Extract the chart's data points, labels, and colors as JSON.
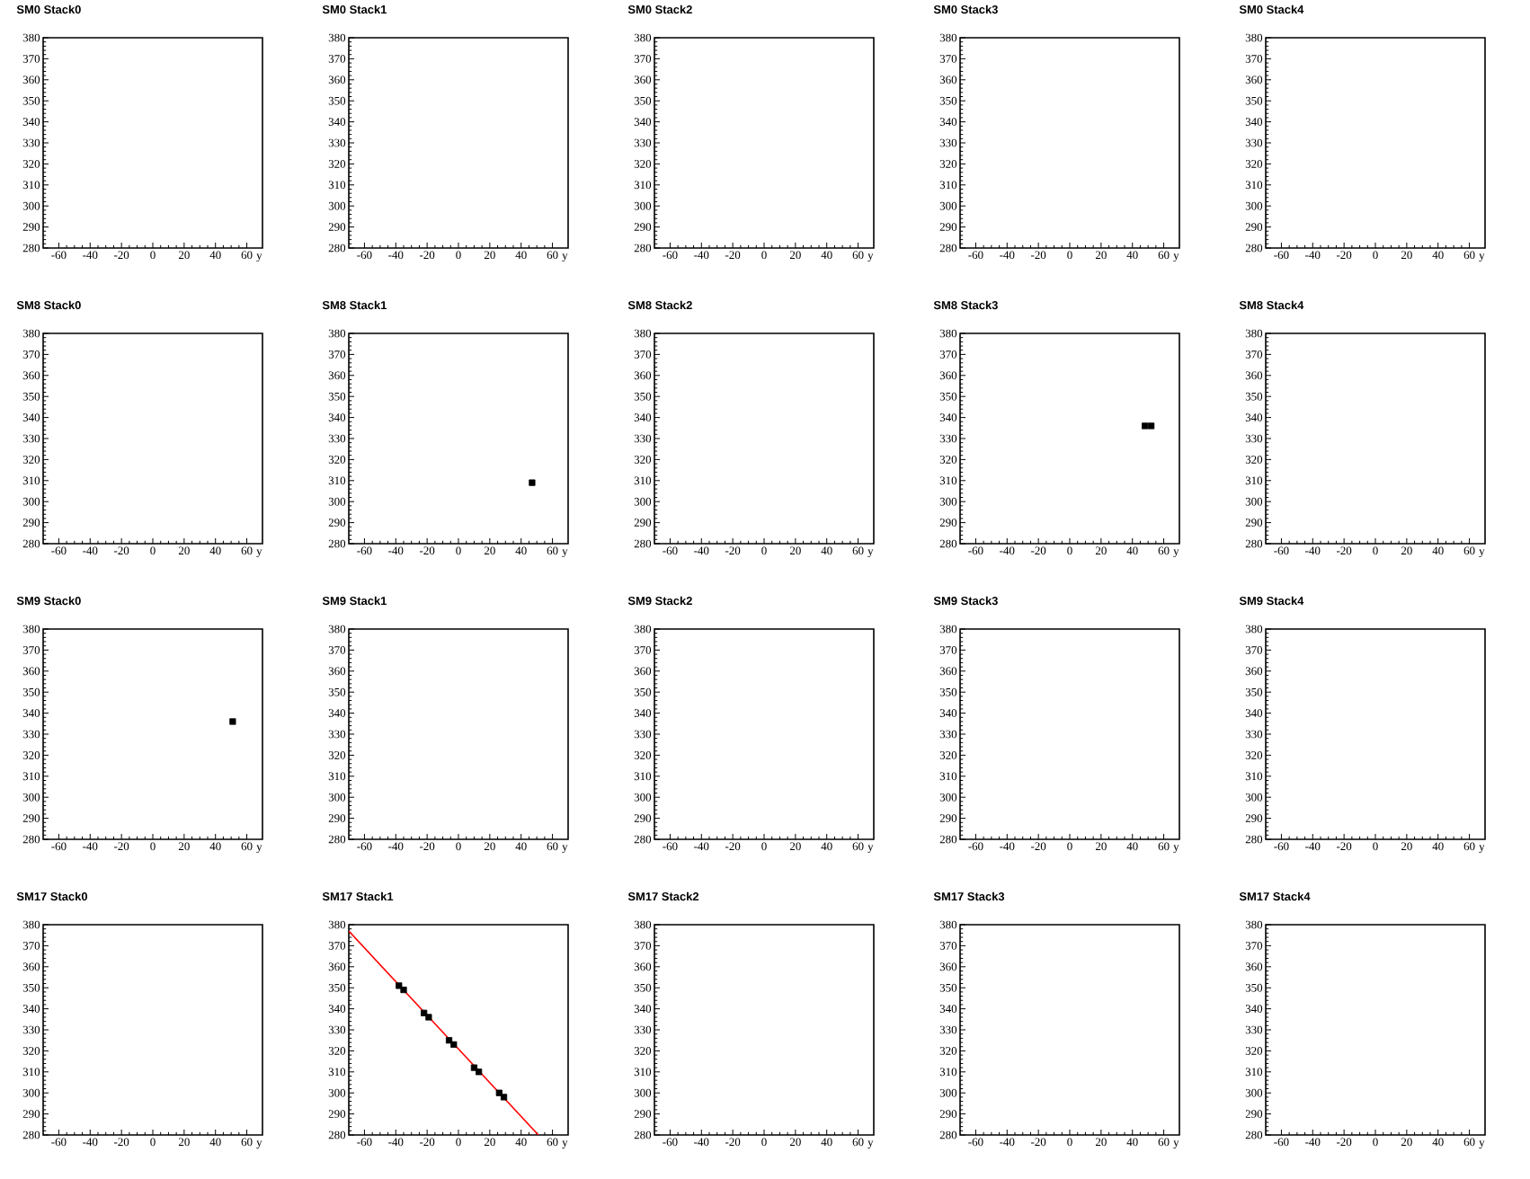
{
  "chart_data": [
    {
      "type": "scatter",
      "title": "SM0 Stack0",
      "xlabel": "y",
      "xlim": [
        -70,
        70
      ],
      "ylim": [
        280,
        380
      ],
      "xticks": [
        -60,
        -40,
        -20,
        0,
        20,
        40,
        60
      ],
      "yticks": [
        280,
        290,
        300,
        310,
        320,
        330,
        340,
        350,
        360,
        370,
        380
      ]
    },
    {
      "type": "scatter",
      "title": "SM0 Stack1",
      "xlabel": "y",
      "xlim": [
        -70,
        70
      ],
      "ylim": [
        280,
        380
      ],
      "xticks": [
        -60,
        -40,
        -20,
        0,
        20,
        40,
        60
      ],
      "yticks": [
        280,
        290,
        300,
        310,
        320,
        330,
        340,
        350,
        360,
        370,
        380
      ]
    },
    {
      "type": "scatter",
      "title": "SM0 Stack2",
      "xlabel": "y",
      "xlim": [
        -70,
        70
      ],
      "ylim": [
        280,
        380
      ],
      "xticks": [
        -60,
        -40,
        -20,
        0,
        20,
        40,
        60
      ],
      "yticks": [
        280,
        290,
        300,
        310,
        320,
        330,
        340,
        350,
        360,
        370,
        380
      ]
    },
    {
      "type": "scatter",
      "title": "SM0 Stack3",
      "xlabel": "y",
      "xlim": [
        -70,
        70
      ],
      "ylim": [
        280,
        380
      ],
      "xticks": [
        -60,
        -40,
        -20,
        0,
        20,
        40,
        60
      ],
      "yticks": [
        280,
        290,
        300,
        310,
        320,
        330,
        340,
        350,
        360,
        370,
        380
      ]
    },
    {
      "type": "scatter",
      "title": "SM0 Stack4",
      "xlabel": "y",
      "xlim": [
        -70,
        70
      ],
      "ylim": [
        280,
        380
      ],
      "xticks": [
        -60,
        -40,
        -20,
        0,
        20,
        40,
        60
      ],
      "yticks": [
        280,
        290,
        300,
        310,
        320,
        330,
        340,
        350,
        360,
        370,
        380
      ]
    },
    {
      "type": "scatter",
      "title": "SM8 Stack0",
      "xlabel": "y",
      "xlim": [
        -70,
        70
      ],
      "ylim": [
        280,
        380
      ],
      "xticks": [
        -60,
        -40,
        -20,
        0,
        20,
        40,
        60
      ],
      "yticks": [
        280,
        290,
        300,
        310,
        320,
        330,
        340,
        350,
        360,
        370,
        380
      ]
    },
    {
      "type": "scatter",
      "title": "SM8 Stack1",
      "xlabel": "y",
      "xlim": [
        -70,
        70
      ],
      "ylim": [
        280,
        380
      ],
      "xticks": [
        -60,
        -40,
        -20,
        0,
        20,
        40,
        60
      ],
      "yticks": [
        280,
        290,
        300,
        310,
        320,
        330,
        340,
        350,
        360,
        370,
        380
      ],
      "marker": "square",
      "color": "#000000",
      "x": [
        47
      ],
      "values": [
        309
      ]
    },
    {
      "type": "scatter",
      "title": "SM8 Stack2",
      "xlabel": "y",
      "xlim": [
        -70,
        70
      ],
      "ylim": [
        280,
        380
      ],
      "xticks": [
        -60,
        -40,
        -20,
        0,
        20,
        40,
        60
      ],
      "yticks": [
        280,
        290,
        300,
        310,
        320,
        330,
        340,
        350,
        360,
        370,
        380
      ]
    },
    {
      "type": "scatter",
      "title": "SM8 Stack3",
      "xlabel": "y",
      "xlim": [
        -70,
        70
      ],
      "ylim": [
        280,
        380
      ],
      "xticks": [
        -60,
        -40,
        -20,
        0,
        20,
        40,
        60
      ],
      "yticks": [
        280,
        290,
        300,
        310,
        320,
        330,
        340,
        350,
        360,
        370,
        380
      ],
      "marker": "square",
      "color": "#000000",
      "x": [
        48,
        52
      ],
      "values": [
        336,
        336
      ]
    },
    {
      "type": "scatter",
      "title": "SM8 Stack4",
      "xlabel": "y",
      "xlim": [
        -70,
        70
      ],
      "ylim": [
        280,
        380
      ],
      "xticks": [
        -60,
        -40,
        -20,
        0,
        20,
        40,
        60
      ],
      "yticks": [
        280,
        290,
        300,
        310,
        320,
        330,
        340,
        350,
        360,
        370,
        380
      ]
    },
    {
      "type": "scatter",
      "title": "SM9 Stack0",
      "xlabel": "y",
      "xlim": [
        -70,
        70
      ],
      "ylim": [
        280,
        380
      ],
      "xticks": [
        -60,
        -40,
        -20,
        0,
        20,
        40,
        60
      ],
      "yticks": [
        280,
        290,
        300,
        310,
        320,
        330,
        340,
        350,
        360,
        370,
        380
      ],
      "marker": "square",
      "color": "#000000",
      "x": [
        51
      ],
      "values": [
        336
      ]
    },
    {
      "type": "scatter",
      "title": "SM9 Stack1",
      "xlabel": "y",
      "xlim": [
        -70,
        70
      ],
      "ylim": [
        280,
        380
      ],
      "xticks": [
        -60,
        -40,
        -20,
        0,
        20,
        40,
        60
      ],
      "yticks": [
        280,
        290,
        300,
        310,
        320,
        330,
        340,
        350,
        360,
        370,
        380
      ]
    },
    {
      "type": "scatter",
      "title": "SM9 Stack2",
      "xlabel": "y",
      "xlim": [
        -70,
        70
      ],
      "ylim": [
        280,
        380
      ],
      "xticks": [
        -60,
        -40,
        -20,
        0,
        20,
        40,
        60
      ],
      "yticks": [
        280,
        290,
        300,
        310,
        320,
        330,
        340,
        350,
        360,
        370,
        380
      ]
    },
    {
      "type": "scatter",
      "title": "SM9 Stack3",
      "xlabel": "y",
      "xlim": [
        -70,
        70
      ],
      "ylim": [
        280,
        380
      ],
      "xticks": [
        -60,
        -40,
        -20,
        0,
        20,
        40,
        60
      ],
      "yticks": [
        280,
        290,
        300,
        310,
        320,
        330,
        340,
        350,
        360,
        370,
        380
      ]
    },
    {
      "type": "scatter",
      "title": "SM9 Stack4",
      "xlabel": "y",
      "xlim": [
        -70,
        70
      ],
      "ylim": [
        280,
        380
      ],
      "xticks": [
        -60,
        -40,
        -20,
        0,
        20,
        40,
        60
      ],
      "yticks": [
        280,
        290,
        300,
        310,
        320,
        330,
        340,
        350,
        360,
        370,
        380
      ]
    },
    {
      "type": "scatter",
      "title": "SM17 Stack0",
      "xlabel": "y",
      "xlim": [
        -70,
        70
      ],
      "ylim": [
        280,
        380
      ],
      "xticks": [
        -60,
        -40,
        -20,
        0,
        20,
        40,
        60
      ],
      "yticks": [
        280,
        290,
        300,
        310,
        320,
        330,
        340,
        350,
        360,
        370,
        380
      ]
    },
    {
      "type": "scatter",
      "title": "SM17 Stack1",
      "xlabel": "y",
      "xlim": [
        -70,
        70
      ],
      "ylim": [
        280,
        380
      ],
      "xticks": [
        -60,
        -40,
        -20,
        0,
        20,
        40,
        60
      ],
      "yticks": [
        280,
        290,
        300,
        310,
        320,
        330,
        340,
        350,
        360,
        370,
        380
      ],
      "series": [
        {
          "marker": "square",
          "color": "#000000",
          "x": [
            -38,
            -35,
            -22,
            -19,
            -6,
            -3,
            10,
            13,
            26,
            29
          ],
          "values": [
            351,
            349,
            338,
            336,
            325,
            323,
            312,
            310,
            300,
            298
          ]
        },
        {
          "type": "line",
          "color": "#ff0000",
          "x": [
            -70,
            51
          ],
          "values": [
            377,
            280
          ]
        }
      ]
    },
    {
      "type": "scatter",
      "title": "SM17 Stack2",
      "xlabel": "y",
      "xlim": [
        -70,
        70
      ],
      "ylim": [
        280,
        380
      ],
      "xticks": [
        -60,
        -40,
        -20,
        0,
        20,
        40,
        60
      ],
      "yticks": [
        280,
        290,
        300,
        310,
        320,
        330,
        340,
        350,
        360,
        370,
        380
      ]
    },
    {
      "type": "scatter",
      "title": "SM17 Stack3",
      "xlabel": "y",
      "xlim": [
        -70,
        70
      ],
      "ylim": [
        280,
        380
      ],
      "xticks": [
        -60,
        -40,
        -20,
        0,
        20,
        40,
        60
      ],
      "yticks": [
        280,
        290,
        300,
        310,
        320,
        330,
        340,
        350,
        360,
        370,
        380
      ]
    },
    {
      "type": "scatter",
      "title": "SM17 Stack4",
      "xlabel": "y",
      "xlim": [
        -70,
        70
      ],
      "ylim": [
        280,
        380
      ],
      "xticks": [
        -60,
        -40,
        -20,
        0,
        20,
        40,
        60
      ],
      "yticks": [
        280,
        290,
        300,
        310,
        320,
        330,
        340,
        350,
        360,
        370,
        380
      ]
    }
  ]
}
